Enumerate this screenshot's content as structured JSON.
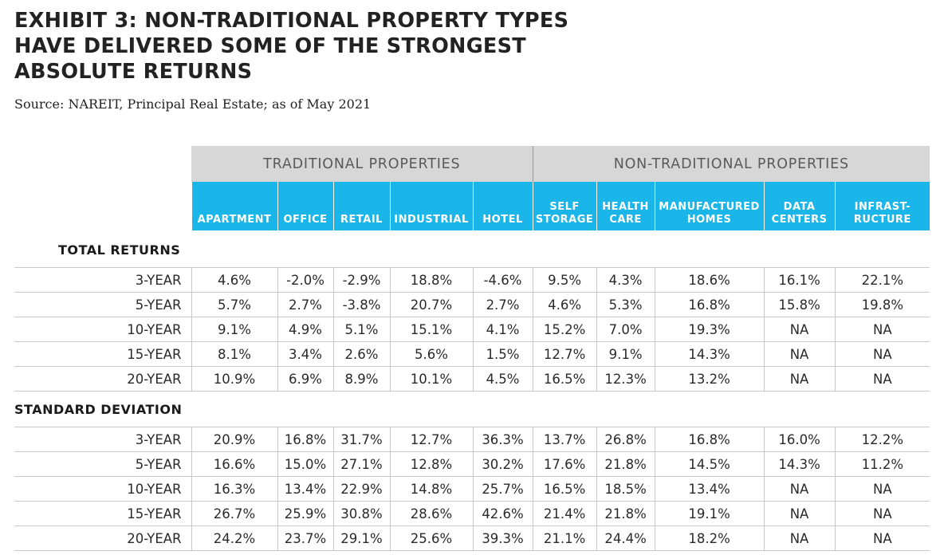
{
  "exhibit": {
    "title_lines": [
      "EXHIBIT 3: NON-TRADITIONAL PROPERTY TYPES",
      "HAVE DELIVERED SOME OF THE STRONGEST",
      "ABSOLUTE RETURNS"
    ],
    "source": "Source: NAREIT, Principal Real Estate; as of May 2021"
  },
  "table": {
    "groups": [
      "TRADITIONAL PROPERTIES",
      "NON-TRADITIONAL PROPERTIES"
    ],
    "columns": [
      [
        "APARTMENT"
      ],
      [
        "OFFICE"
      ],
      [
        "RETAIL"
      ],
      [
        "INDUSTRIAL"
      ],
      [
        "HOTEL"
      ],
      [
        "SELF",
        "STORAGE"
      ],
      [
        "HEALTH",
        "CARE"
      ],
      [
        "MANUFACTURED",
        "HOMES"
      ],
      [
        "DATA",
        "CENTERS"
      ],
      [
        "INFRAST-",
        "RUCTURE"
      ]
    ],
    "sections": [
      {
        "label": "TOTAL RETURNS",
        "rows": [
          {
            "label": "3-YEAR",
            "values": [
              "4.6%",
              "-2.0%",
              "-2.9%",
              "18.8%",
              "-4.6%",
              "9.5%",
              "4.3%",
              "18.6%",
              "16.1%",
              "22.1%"
            ]
          },
          {
            "label": "5-YEAR",
            "values": [
              "5.7%",
              "2.7%",
              "-3.8%",
              "20.7%",
              "2.7%",
              "4.6%",
              "5.3%",
              "16.8%",
              "15.8%",
              "19.8%"
            ]
          },
          {
            "label": "10-YEAR",
            "values": [
              "9.1%",
              "4.9%",
              "5.1%",
              "15.1%",
              "4.1%",
              "15.2%",
              "7.0%",
              "19.3%",
              "NA",
              "NA"
            ]
          },
          {
            "label": "15-YEAR",
            "values": [
              "8.1%",
              "3.4%",
              "2.6%",
              "5.6%",
              "1.5%",
              "12.7%",
              "9.1%",
              "14.3%",
              "NA",
              "NA"
            ]
          },
          {
            "label": "20-YEAR",
            "values": [
              "10.9%",
              "6.9%",
              "8.9%",
              "10.1%",
              "4.5%",
              "16.5%",
              "12.3%",
              "13.2%",
              "NA",
              "NA"
            ]
          }
        ]
      },
      {
        "label": "STANDARD DEVIATION",
        "rows": [
          {
            "label": "3-YEAR",
            "values": [
              "20.9%",
              "16.8%",
              "31.7%",
              "12.7%",
              "36.3%",
              "13.7%",
              "26.8%",
              "16.8%",
              "16.0%",
              "12.2%"
            ]
          },
          {
            "label": "5-YEAR",
            "values": [
              "16.6%",
              "15.0%",
              "27.1%",
              "12.8%",
              "30.2%",
              "17.6%",
              "21.8%",
              "14.5%",
              "14.3%",
              "11.2%"
            ]
          },
          {
            "label": "10-YEAR",
            "values": [
              "16.3%",
              "13.4%",
              "22.9%",
              "14.8%",
              "25.7%",
              "16.5%",
              "18.5%",
              "13.4%",
              "NA",
              "NA"
            ]
          },
          {
            "label": "15-YEAR",
            "values": [
              "26.7%",
              "25.9%",
              "30.8%",
              "28.6%",
              "42.6%",
              "21.4%",
              "21.8%",
              "19.1%",
              "NA",
              "NA"
            ]
          },
          {
            "label": "20-YEAR",
            "values": [
              "24.2%",
              "23.7%",
              "29.1%",
              "25.6%",
              "39.3%",
              "21.1%",
              "24.4%",
              "18.2%",
              "NA",
              "NA"
            ]
          }
        ]
      }
    ]
  },
  "colors": {
    "header_blue": "#1ab6ea",
    "group_gray": "#d7d7d7"
  }
}
